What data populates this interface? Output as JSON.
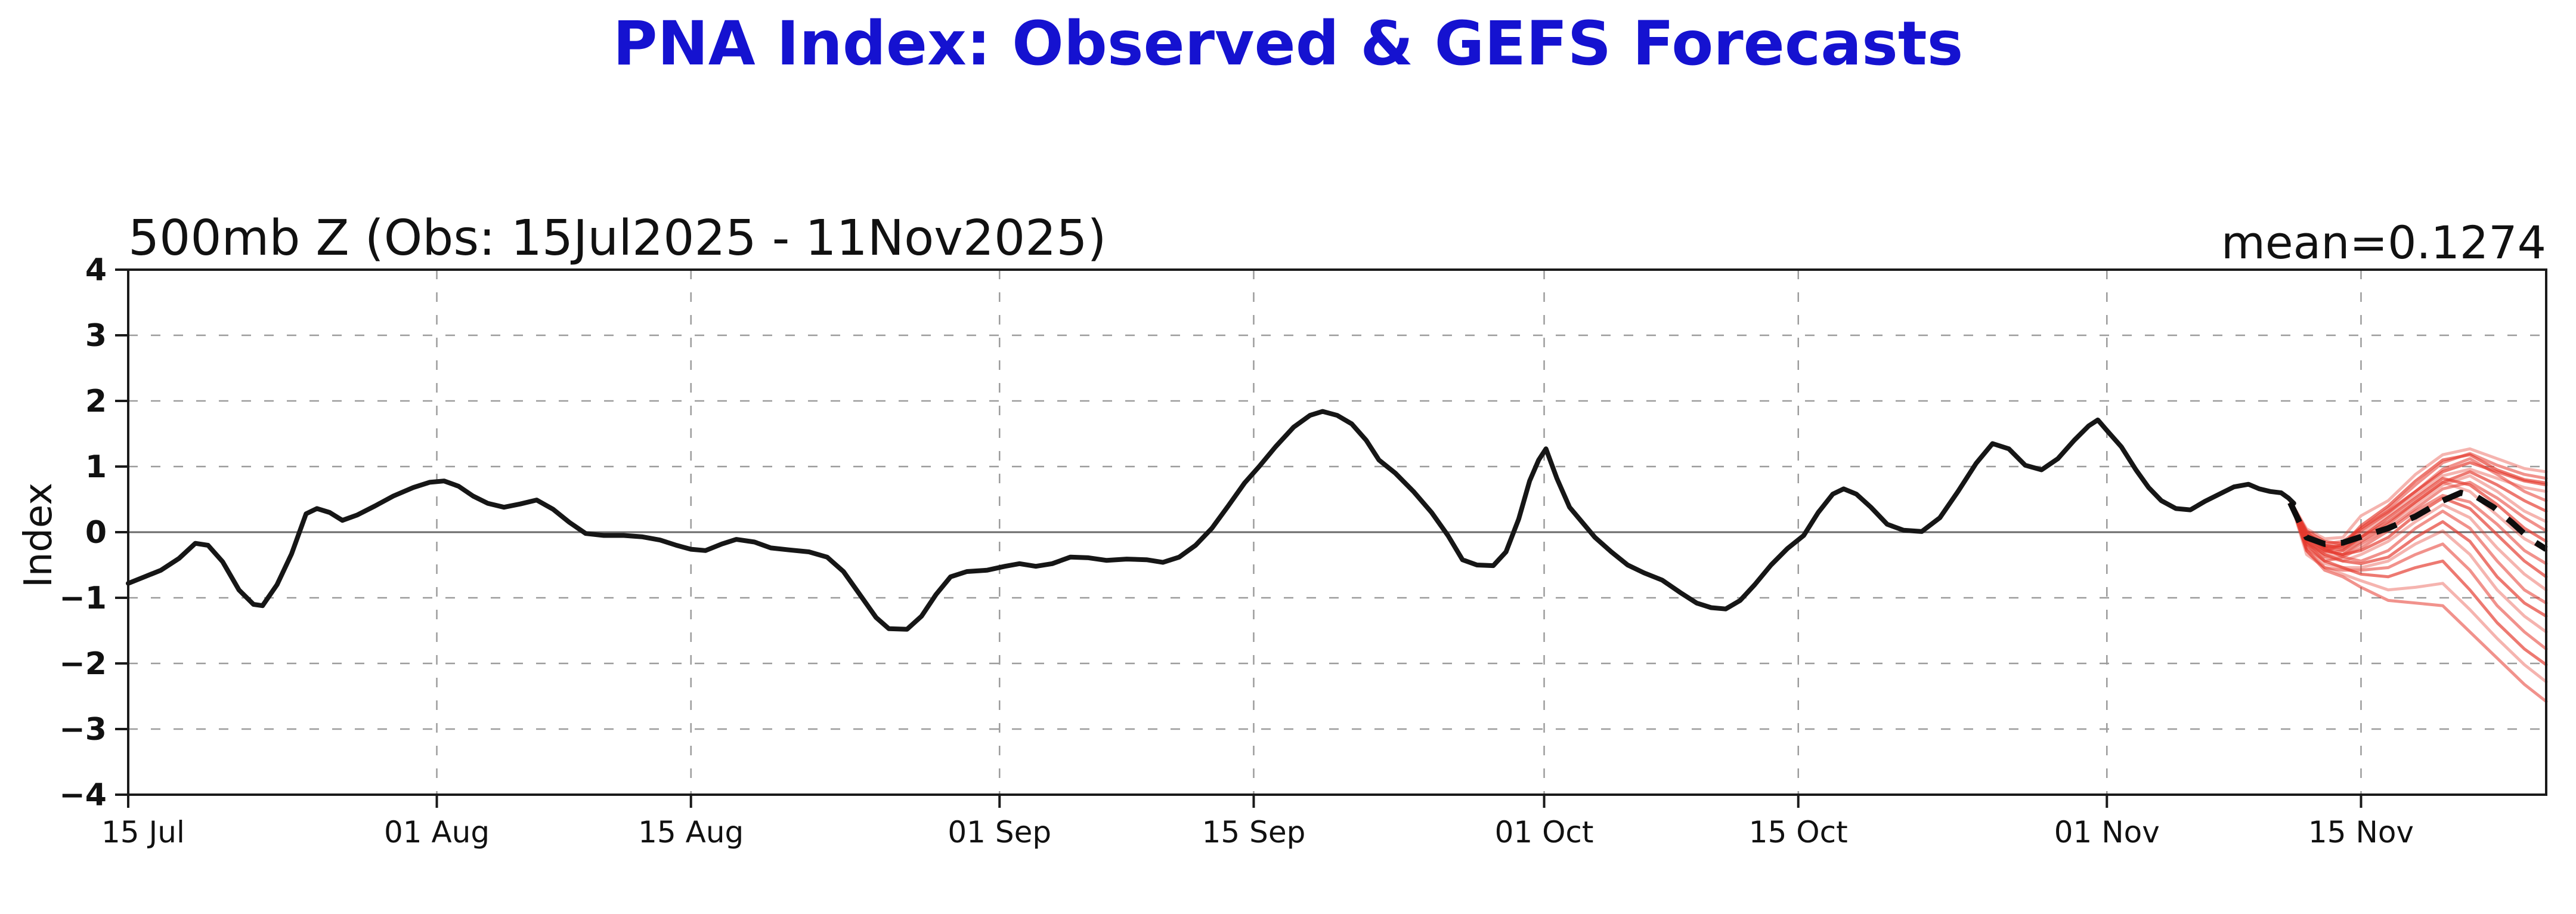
{
  "header": {
    "title_color": "#1512d0"
  },
  "chart_data": {
    "type": "line",
    "title": "PNA Index: Observed & GEFS Forecasts",
    "subtitle": "500mb Z (Obs: 15Jul2025 - 11Nov2025)",
    "mean_annotation": "mean=0.1274",
    "ylabel": "Index",
    "x_unit": "days since 15 Jul 2025",
    "xlim": [
      0,
      133.2
    ],
    "ylim": [
      -4,
      4
    ],
    "grid": "dashed",
    "legend_position": "none",
    "xticks": [
      {
        "day": 0,
        "label": "15 Jul"
      },
      {
        "day": 17,
        "label": "01 Aug"
      },
      {
        "day": 31,
        "label": "15 Aug"
      },
      {
        "day": 48,
        "label": "01 Sep"
      },
      {
        "day": 62,
        "label": "15 Sep"
      },
      {
        "day": 78,
        "label": "01 Oct"
      },
      {
        "day": 92,
        "label": "15 Oct"
      },
      {
        "day": 109,
        "label": "01 Nov"
      },
      {
        "day": 123,
        "label": "15 Nov"
      }
    ],
    "yticks": [
      {
        "v": 4,
        "label": "4"
      },
      {
        "v": 3,
        "label": "3"
      },
      {
        "v": 2,
        "label": "2"
      },
      {
        "v": 1,
        "label": "1"
      },
      {
        "v": 0,
        "label": "0"
      },
      {
        "v": -1,
        "label": "−1"
      },
      {
        "v": -2,
        "label": "−2"
      },
      {
        "v": -3,
        "label": "−3"
      },
      {
        "v": -4,
        "label": "−4"
      }
    ],
    "colors": {
      "observed": "#161616",
      "ensemble": "#e5392e",
      "ensemble_mean": "#0d0d0d",
      "grid": "#9c9c9c",
      "zero_line": "#6a6a6a",
      "frame": "#1a1a1a"
    },
    "observed": {
      "label": "Observed PNA index (15Jul2025 - 11Nov2025)",
      "points": [
        [
          0,
          -0.78
        ],
        [
          0.9,
          -0.68
        ],
        [
          1.8,
          -0.58
        ],
        [
          2.8,
          -0.4
        ],
        [
          3.7,
          -0.17
        ],
        [
          4.4,
          -0.2
        ],
        [
          5.2,
          -0.45
        ],
        [
          6.1,
          -0.88
        ],
        [
          6.9,
          -1.1
        ],
        [
          7.4,
          -1.12
        ],
        [
          8.2,
          -0.8
        ],
        [
          9,
          -0.33
        ],
        [
          9.8,
          0.28
        ],
        [
          10.4,
          0.36
        ],
        [
          11.1,
          0.3
        ],
        [
          11.8,
          0.18
        ],
        [
          12.6,
          0.26
        ],
        [
          13.6,
          0.4
        ],
        [
          14.6,
          0.55
        ],
        [
          15.7,
          0.68
        ],
        [
          16.6,
          0.76
        ],
        [
          17.4,
          0.78
        ],
        [
          18.2,
          0.7
        ],
        [
          19,
          0.55
        ],
        [
          19.8,
          0.44
        ],
        [
          20.7,
          0.38
        ],
        [
          21.6,
          0.43
        ],
        [
          22.5,
          0.49
        ],
        [
          23.4,
          0.35
        ],
        [
          24.3,
          0.15
        ],
        [
          25.2,
          -0.02
        ],
        [
          26.2,
          -0.05
        ],
        [
          27.3,
          -0.05
        ],
        [
          28.3,
          -0.07
        ],
        [
          29.3,
          -0.12
        ],
        [
          30.2,
          -0.2
        ],
        [
          31,
          -0.26
        ],
        [
          31.8,
          -0.28
        ],
        [
          32.7,
          -0.18
        ],
        [
          33.5,
          -0.11
        ],
        [
          34.5,
          -0.15
        ],
        [
          35.4,
          -0.24
        ],
        [
          36.4,
          -0.27
        ],
        [
          37.5,
          -0.3
        ],
        [
          38.5,
          -0.38
        ],
        [
          39.4,
          -0.6
        ],
        [
          40.3,
          -0.95
        ],
        [
          41.2,
          -1.3
        ],
        [
          41.9,
          -1.47
        ],
        [
          42.9,
          -1.48
        ],
        [
          43.7,
          -1.28
        ],
        [
          44.5,
          -0.95
        ],
        [
          45.3,
          -0.68
        ],
        [
          46.2,
          -0.6
        ],
        [
          47.3,
          -0.58
        ],
        [
          48.3,
          -0.52
        ],
        [
          49.1,
          -0.48
        ],
        [
          50,
          -0.52
        ],
        [
          50.9,
          -0.48
        ],
        [
          51.9,
          -0.38
        ],
        [
          52.9,
          -0.39
        ],
        [
          53.9,
          -0.43
        ],
        [
          55,
          -0.41
        ],
        [
          56.1,
          -0.42
        ],
        [
          57,
          -0.46
        ],
        [
          57.9,
          -0.38
        ],
        [
          58.8,
          -0.2
        ],
        [
          59.7,
          0.06
        ],
        [
          60.6,
          0.4
        ],
        [
          61.5,
          0.75
        ],
        [
          62.3,
          1.0
        ],
        [
          63.2,
          1.3
        ],
        [
          64.2,
          1.6
        ],
        [
          65.1,
          1.78
        ],
        [
          65.8,
          1.84
        ],
        [
          66.6,
          1.78
        ],
        [
          67.4,
          1.65
        ],
        [
          68.2,
          1.4
        ],
        [
          68.9,
          1.1
        ],
        [
          69.8,
          0.9
        ],
        [
          70.8,
          0.62
        ],
        [
          71.8,
          0.3
        ],
        [
          72.7,
          -0.05
        ],
        [
          73.5,
          -0.42
        ],
        [
          74.3,
          -0.5
        ],
        [
          75.2,
          -0.51
        ],
        [
          75.9,
          -0.3
        ],
        [
          76.6,
          0.2
        ],
        [
          77.2,
          0.78
        ],
        [
          77.7,
          1.1
        ],
        [
          78.1,
          1.27
        ],
        [
          78.7,
          0.82
        ],
        [
          79.4,
          0.38
        ],
        [
          80.1,
          0.15
        ],
        [
          80.8,
          -0.08
        ],
        [
          81.7,
          -0.3
        ],
        [
          82.6,
          -0.5
        ],
        [
          83.5,
          -0.62
        ],
        [
          84.5,
          -0.73
        ],
        [
          85.5,
          -0.92
        ],
        [
          86.4,
          -1.08
        ],
        [
          87.2,
          -1.15
        ],
        [
          88,
          -1.17
        ],
        [
          88.8,
          -1.04
        ],
        [
          89.6,
          -0.8
        ],
        [
          90.5,
          -0.5
        ],
        [
          91.4,
          -0.25
        ],
        [
          92.3,
          -0.05
        ],
        [
          93.1,
          0.3
        ],
        [
          93.9,
          0.58
        ],
        [
          94.5,
          0.66
        ],
        [
          95.2,
          0.58
        ],
        [
          96,
          0.38
        ],
        [
          96.9,
          0.12
        ],
        [
          97.8,
          0.03
        ],
        [
          98.8,
          0.01
        ],
        [
          99.8,
          0.22
        ],
        [
          100.8,
          0.62
        ],
        [
          101.8,
          1.05
        ],
        [
          102.7,
          1.35
        ],
        [
          103.6,
          1.27
        ],
        [
          104.5,
          1.02
        ],
        [
          105.4,
          0.95
        ],
        [
          106.3,
          1.12
        ],
        [
          107.2,
          1.4
        ],
        [
          108,
          1.62
        ],
        [
          108.5,
          1.71
        ],
        [
          109,
          1.55
        ],
        [
          109.8,
          1.3
        ],
        [
          110.6,
          0.95
        ],
        [
          111.3,
          0.68
        ],
        [
          112,
          0.48
        ],
        [
          112.8,
          0.36
        ],
        [
          113.6,
          0.34
        ],
        [
          114.4,
          0.47
        ],
        [
          115.2,
          0.58
        ],
        [
          116,
          0.69
        ],
        [
          116.8,
          0.73
        ],
        [
          117.4,
          0.66
        ],
        [
          118,
          0.62
        ],
        [
          118.6,
          0.6
        ],
        [
          119,
          0.52
        ],
        [
          119.3,
          0.44
        ]
      ]
    },
    "ensemble_members": {
      "label": "GEFS ensemble member forecasts",
      "days": [
        119.1,
        120,
        121,
        122,
        123,
        124.5,
        126,
        127.5,
        129,
        130.5,
        132,
        133.2
      ],
      "members": [
        [
          0.48,
          0.05,
          -0.1,
          -0.08,
          0.25,
          0.48,
          0.88,
          1.18,
          1.27,
          1.12,
          0.97,
          0.92
        ],
        [
          0.48,
          -0.02,
          -0.18,
          -0.14,
          0.06,
          0.36,
          0.72,
          1.06,
          1.2,
          1.02,
          0.88,
          0.82
        ],
        [
          0.48,
          0.02,
          -0.14,
          -0.18,
          0.02,
          0.3,
          0.62,
          0.92,
          1.06,
          0.92,
          0.78,
          0.72
        ],
        [
          0.48,
          -0.08,
          -0.24,
          -0.22,
          -0.04,
          0.26,
          0.56,
          0.86,
          0.96,
          0.82,
          0.68,
          0.62
        ],
        [
          0.48,
          -0.14,
          -0.3,
          -0.18,
          0.06,
          0.32,
          0.62,
          0.96,
          1.12,
          0.88,
          0.62,
          0.48
        ],
        [
          0.48,
          -0.04,
          -0.2,
          -0.24,
          -0.08,
          0.16,
          0.46,
          0.76,
          0.92,
          0.72,
          0.48,
          0.32
        ],
        [
          0.48,
          -0.18,
          -0.34,
          -0.28,
          -0.14,
          0.12,
          0.42,
          0.72,
          0.86,
          0.62,
          0.32,
          0.16
        ],
        [
          0.48,
          -0.1,
          -0.28,
          -0.34,
          -0.18,
          0.06,
          0.36,
          0.66,
          0.76,
          0.52,
          0.22,
          0.02
        ],
        [
          0.48,
          0.0,
          -0.24,
          -0.28,
          -0.08,
          0.22,
          0.52,
          0.82,
          0.72,
          0.42,
          0.06,
          -0.14
        ],
        [
          0.48,
          -0.14,
          -0.38,
          -0.34,
          -0.14,
          0.12,
          0.46,
          0.76,
          0.62,
          0.26,
          -0.1,
          -0.28
        ],
        [
          0.48,
          -0.24,
          -0.44,
          -0.38,
          -0.24,
          0.02,
          0.32,
          0.56,
          0.46,
          0.12,
          -0.28,
          -0.48
        ],
        [
          0.48,
          -0.08,
          -0.28,
          -0.34,
          -0.28,
          -0.08,
          0.26,
          0.52,
          0.36,
          -0.04,
          -0.44,
          -0.68
        ],
        [
          0.48,
          -0.18,
          -0.38,
          -0.44,
          -0.34,
          -0.14,
          0.16,
          0.42,
          0.22,
          -0.24,
          -0.64,
          -0.88
        ],
        [
          0.48,
          -0.04,
          -0.24,
          -0.38,
          -0.44,
          -0.28,
          0.06,
          0.32,
          0.06,
          -0.44,
          -0.88,
          -1.08
        ],
        [
          0.48,
          -0.14,
          -0.34,
          -0.44,
          -0.48,
          -0.38,
          -0.08,
          0.16,
          -0.14,
          -0.68,
          -1.08,
          -1.28
        ],
        [
          0.48,
          -0.24,
          -0.48,
          -0.54,
          -0.54,
          -0.44,
          -0.18,
          0.02,
          -0.34,
          -0.88,
          -1.28,
          -1.52
        ],
        [
          0.48,
          -0.28,
          -0.54,
          -0.58,
          -0.58,
          -0.54,
          -0.34,
          -0.18,
          -0.58,
          -1.12,
          -1.52,
          -1.78
        ],
        [
          0.48,
          -0.18,
          -0.44,
          -0.54,
          -0.64,
          -0.68,
          -0.54,
          -0.44,
          -0.88,
          -1.38,
          -1.78,
          -2.02
        ],
        [
          0.48,
          -0.34,
          -0.54,
          -0.64,
          -0.74,
          -0.88,
          -0.84,
          -0.78,
          -1.18,
          -1.62,
          -2.02,
          -2.28
        ],
        [
          0.48,
          -0.28,
          -0.58,
          -0.68,
          -0.84,
          -1.04,
          -1.08,
          -1.12,
          -1.52,
          -1.92,
          -2.32,
          -2.58
        ],
        [
          0.48,
          -0.1,
          -0.22,
          -0.2,
          0.1,
          0.4,
          0.78,
          1.1,
          1.18,
          0.95,
          0.8,
          0.75
        ]
      ]
    },
    "ensemble_mean": {
      "label": "GEFS ensemble mean forecast",
      "style": "dashed",
      "days": [
        119.1,
        120,
        121,
        122,
        123,
        124.5,
        126,
        127.5,
        128.5,
        129.3,
        130.3,
        131.3,
        132.3,
        133.2
      ],
      "values": [
        0.45,
        -0.08,
        -0.18,
        -0.16,
        -0.07,
        0.06,
        0.24,
        0.48,
        0.6,
        0.55,
        0.38,
        0.15,
        -0.1,
        -0.26
      ]
    }
  }
}
